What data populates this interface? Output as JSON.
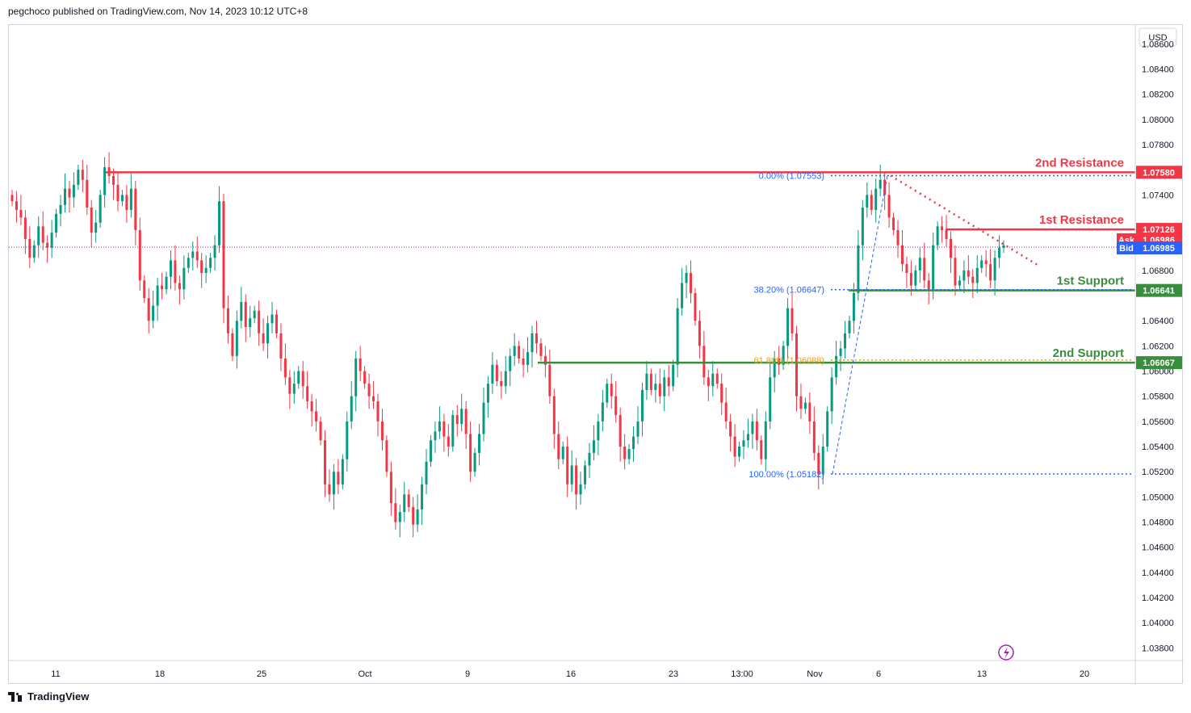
{
  "header": {
    "publisher": "pegchoco published on TradingView.com, Nov 14, 2023 10:12 UTC+8"
  },
  "footer": {
    "brand": "TradingView"
  },
  "chart_data": {
    "type": "candlestick",
    "currency": "USD",
    "ylim": [
      1.037,
      1.0875
    ],
    "y_ticks": [
      "1.08600",
      "1.08400",
      "1.08200",
      "1.08000",
      "1.07800",
      "1.07400",
      "1.06800",
      "1.06400",
      "1.06200",
      "1.06000",
      "1.05800",
      "1.05600",
      "1.05400",
      "1.05200",
      "1.05000",
      "1.04800",
      "1.04600",
      "1.04400",
      "1.04200",
      "1.04000",
      "1.03800"
    ],
    "x_ticks": [
      "11",
      "18",
      "25",
      "Oct",
      "9",
      "16",
      "23",
      "13:00",
      "Nov",
      "6",
      "13",
      "20"
    ],
    "levels": [
      {
        "name": "2nd Resistance",
        "value": 1.0758,
        "tag": "1.07580",
        "color": "#f23645"
      },
      {
        "name": "1st Resistance",
        "value": 1.07126,
        "tag": "1.07126",
        "color": "#f23645"
      },
      {
        "name": "1st Support",
        "value": 1.06641,
        "tag": "1.06641",
        "color": "#388e3c"
      },
      {
        "name": "2nd Support",
        "value": 1.06067,
        "tag": "1.06067",
        "color": "#388e3c"
      }
    ],
    "ask": {
      "label": "Ask",
      "value": "1.06986"
    },
    "bid": {
      "label": "Bid",
      "value": "1.06985"
    },
    "fib": [
      {
        "label": "0.00% (1.07553)",
        "value": 1.07553,
        "color": "#2962ff"
      },
      {
        "label": "38.20% (1.06647)",
        "value": 1.06647,
        "color": "#2962ff"
      },
      {
        "label": "61.80% (1.06088)",
        "value": 1.06088,
        "color": "#ff9800"
      },
      {
        "label": "100.00% (1.05182)",
        "value": 1.05182,
        "color": "#2962ff"
      }
    ],
    "up_color": "#089981",
    "down_color": "#f23645",
    "series_close": [
      1.0735,
      1.0728,
      1.0722,
      1.0705,
      1.069,
      1.07,
      1.0715,
      1.0702,
      1.0698,
      1.071,
      1.0725,
      1.0732,
      1.0745,
      1.0738,
      1.0748,
      1.076,
      1.0752,
      1.073,
      1.071,
      1.0718,
      1.074,
      1.0762,
      1.0755,
      1.0748,
      1.0735,
      1.074,
      1.0728,
      1.0745,
      1.0712,
      1.0672,
      1.0658,
      1.064,
      1.0652,
      1.0668,
      1.0665,
      1.0675,
      1.0688,
      1.067,
      1.0665,
      1.0682,
      1.069,
      1.0695,
      1.0688,
      1.0678,
      1.0682,
      1.069,
      1.07,
      1.0735,
      1.065,
      1.063,
      1.0612,
      1.064,
      1.0655,
      1.0635,
      1.0642,
      1.0648,
      1.063,
      1.0622,
      1.0638,
      1.0645,
      1.063,
      1.061,
      1.0595,
      1.0582,
      1.059,
      1.06,
      1.0588,
      1.0576,
      1.0568,
      1.056,
      1.0545,
      1.051,
      1.0502,
      1.052,
      1.051,
      1.053,
      1.056,
      1.058,
      1.061,
      1.06,
      1.059,
      1.058,
      1.0576,
      1.056,
      1.0545,
      1.052,
      1.0495,
      1.048,
      1.0488,
      1.0502,
      1.0492,
      1.0478,
      1.049,
      1.051,
      1.0528,
      1.0545,
      1.0552,
      1.056,
      1.0548,
      1.054,
      1.0565,
      1.0558,
      1.057,
      1.055,
      1.052,
      1.0535,
      1.055,
      1.0575,
      1.059,
      1.0605,
      1.0592,
      1.0588,
      1.06,
      1.0612,
      1.062,
      1.061,
      1.0605,
      1.0615,
      1.063,
      1.0622,
      1.0612,
      1.0605,
      1.058,
      1.055,
      1.053,
      1.054,
      1.051,
      1.0525,
      1.0502,
      1.051,
      1.0525,
      1.0535,
      1.0545,
      1.056,
      1.0575,
      1.059,
      1.058,
      1.0565,
      1.054,
      1.053,
      1.0538,
      1.0548,
      1.056,
      1.0585,
      1.0598,
      1.0585,
      1.059,
      1.058,
      1.0595,
      1.0588,
      1.0605,
      1.065,
      1.067,
      1.0678,
      1.0662,
      1.064,
      1.062,
      1.0595,
      1.0588,
      1.0598,
      1.059,
      1.0575,
      1.056,
      1.0548,
      1.0532,
      1.054,
      1.0545,
      1.055,
      1.056,
      1.0545,
      1.053,
      1.056,
      1.0595,
      1.061,
      1.0605,
      1.062,
      1.065,
      1.063,
      1.058,
      1.057,
      1.0575,
      1.056,
      1.0535,
      1.0518,
      1.054,
      1.0568,
      1.0595,
      1.0612,
      1.0618,
      1.063,
      1.064,
      1.0662,
      1.07,
      1.073,
      1.074,
      1.0728,
      1.0745,
      1.0752,
      1.074,
      1.0722,
      1.0712,
      1.07,
      1.0685,
      1.0678,
      1.0668,
      1.068,
      1.069,
      1.0672,
      1.0665,
      1.07,
      1.0715,
      1.0712,
      1.0705,
      1.069,
      1.0668,
      1.0672,
      1.068,
      1.0675,
      1.067,
      1.0682,
      1.0688,
      1.0685,
      1.0672,
      1.069,
      1.0698,
      1.07
    ]
  }
}
